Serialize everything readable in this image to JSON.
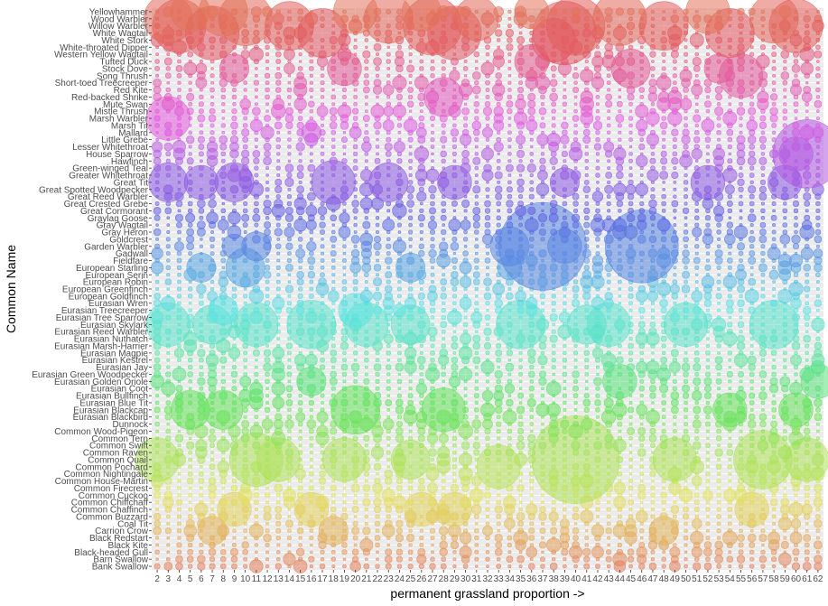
{
  "chart_data": {
    "type": "scatter",
    "subtype": "bubble",
    "xlabel": "permanent grassland proportion ->",
    "ylabel": "Common Name",
    "x_categories": [
      "2",
      "3",
      "4",
      "5",
      "6",
      "7",
      "8",
      "9",
      "10",
      "11",
      "12",
      "13",
      "14",
      "15",
      "16",
      "17",
      "18",
      "19",
      "20",
      "21",
      "22",
      "23",
      "24",
      "25",
      "26",
      "27",
      "28",
      "29",
      "30",
      "31",
      "32",
      "33",
      "34",
      "35",
      "36",
      "37",
      "38",
      "39",
      "40",
      "41",
      "42",
      "43",
      "44",
      "45",
      "46",
      "47",
      "48",
      "49",
      "50",
      "51",
      "52",
      "53",
      "54",
      "55",
      "56",
      "57",
      "58",
      "59",
      "60",
      "61",
      "62"
    ],
    "y_categories": [
      "Bank Swallow",
      "Barn Swallow",
      "Black-headed Gull",
      "Black Kite",
      "Black Redstart",
      "Carrion Crow",
      "Coal Tit",
      "Common Buzzard",
      "Common Chaffinch",
      "Common Chiffchaff",
      "Common Cuckoo",
      "Common Firecrest",
      "Common House-Martin",
      "Common Nightingale",
      "Common Pochard",
      "Common Quail",
      "Common Raven",
      "Common Swift",
      "Common Tern",
      "Common Wood-Pigeon",
      "Dunnock",
      "Eurasian Blackbird",
      "Eurasian Blackcap",
      "Eurasian Blue Tit",
      "Eurasian Bullfinch",
      "Eurasian Coot",
      "Eurasian Golden Oriole",
      "Eurasian Green Woodpecker",
      "Eurasian Jay",
      "Eurasian Kestrel",
      "Eurasian Magpie",
      "Eurasian Marsh-Harrier",
      "Eurasian Nuthatch",
      "Eurasian Reed Warbler",
      "Eurasian Skylark",
      "Eurasian Tree Sparrow",
      "Eurasian Treecreeper",
      "Eurasian Wren",
      "European Goldfinch",
      "European Greenfinch",
      "European Robin",
      "European Serin",
      "European Starling",
      "Fieldfare",
      "Gadwall",
      "Garden Warbler",
      "Goldcrest",
      "Gray Heron",
      "Gray Wagtail",
      "Graylag Goose",
      "Great Cormorant",
      "Great Crested Grebe",
      "Great Reed Warbler",
      "Great Spotted Woodpecker",
      "Great Tit",
      "Greater Whitethroat",
      "Green-winged Teal",
      "Hawfinch",
      "House Sparrow",
      "Lesser Whitethroat",
      "Little Grebe",
      "Mallard",
      "Marsh Tit",
      "Marsh Warbler",
      "Mistle Thrush",
      "Mute Swan",
      "Red-backed Shrike",
      "Red Kite",
      "Short-toed Treecreeper",
      "Song Thrush",
      "Stock Dove",
      "Tufted Duck",
      "Western Yellow Wagtail",
      "White-throated Dipper",
      "White Stork",
      "White Wagtail",
      "Willow Warbler",
      "Wood Warbler",
      "Yellowhammer"
    ],
    "highlights": [
      {
        "species": "Yellowhammer",
        "x": "5",
        "size": 8
      },
      {
        "species": "Yellowhammer",
        "x": "8",
        "size": 10
      },
      {
        "species": "Yellowhammer",
        "x": "20",
        "size": 9
      },
      {
        "species": "Yellowhammer",
        "x": "26",
        "size": 8
      },
      {
        "species": "Yellowhammer",
        "x": "36",
        "size": 7
      },
      {
        "species": "Yellowhammer",
        "x": "52",
        "size": 9
      },
      {
        "species": "Wood Warbler",
        "x": "3",
        "size": 10
      },
      {
        "species": "Wood Warbler",
        "x": "10",
        "size": 11
      },
      {
        "species": "Wood Warbler",
        "x": "23",
        "size": 10
      },
      {
        "species": "Wood Warbler",
        "x": "31",
        "size": 9
      },
      {
        "species": "Wood Warbler",
        "x": "44",
        "size": 11
      },
      {
        "species": "Wood Warbler",
        "x": "58",
        "size": 10
      },
      {
        "species": "Willow Warbler",
        "x": "4",
        "size": 11
      },
      {
        "species": "Willow Warbler",
        "x": "14",
        "size": 10
      },
      {
        "species": "Willow Warbler",
        "x": "27",
        "size": 12
      },
      {
        "species": "Willow Warbler",
        "x": "40",
        "size": 12
      },
      {
        "species": "Willow Warbler",
        "x": "48",
        "size": 10
      },
      {
        "species": "Willow Warbler",
        "x": "60",
        "size": 11
      },
      {
        "species": "White Wagtail",
        "x": "7",
        "size": 11
      },
      {
        "species": "White Wagtail",
        "x": "17",
        "size": 10
      },
      {
        "species": "White Wagtail",
        "x": "29",
        "size": 11
      },
      {
        "species": "White Wagtail",
        "x": "39",
        "size": 13
      },
      {
        "species": "White Wagtail",
        "x": "54",
        "size": 10
      },
      {
        "species": "White Stork",
        "x": "38",
        "size": 9
      },
      {
        "species": "Tufted Duck",
        "x": "36",
        "size": 7
      },
      {
        "species": "Stock Dove",
        "x": "9",
        "size": 6
      },
      {
        "species": "Stock Dove",
        "x": "19",
        "size": 7
      },
      {
        "species": "Stock Dove",
        "x": "45",
        "size": 8
      },
      {
        "species": "Stock Dove",
        "x": "53",
        "size": 6
      },
      {
        "species": "Song Thrush",
        "x": "55",
        "size": 9
      },
      {
        "species": "Red-backed Shrike",
        "x": "28",
        "size": 8
      },
      {
        "species": "Marsh Warbler",
        "x": "3",
        "size": 9
      },
      {
        "species": "Mallard",
        "x": "16",
        "size": 4
      },
      {
        "species": "House Sparrow",
        "x": "61",
        "size": 14
      },
      {
        "species": "House Sparrow",
        "x": "60",
        "size": 7
      },
      {
        "species": "Great Tit",
        "x": "3",
        "size": 8
      },
      {
        "species": "Great Tit",
        "x": "6",
        "size": 7
      },
      {
        "species": "Great Tit",
        "x": "9",
        "size": 8
      },
      {
        "species": "Great Tit",
        "x": "18",
        "size": 9
      },
      {
        "species": "Great Tit",
        "x": "23",
        "size": 8
      },
      {
        "species": "Great Tit",
        "x": "29",
        "size": 7
      },
      {
        "species": "Great Tit",
        "x": "39",
        "size": 6
      },
      {
        "species": "Great Tit",
        "x": "52",
        "size": 7
      },
      {
        "species": "Great Tit",
        "x": "59",
        "size": 7
      },
      {
        "species": "Garden Warbler",
        "x": "37",
        "size": 18
      },
      {
        "species": "Garden Warbler",
        "x": "46",
        "size": 15
      },
      {
        "species": "Garden Warbler",
        "x": "34",
        "size": 8
      },
      {
        "species": "Garden Warbler",
        "x": "39",
        "size": 7
      },
      {
        "species": "Garden Warbler",
        "x": "11",
        "size": 6
      },
      {
        "species": "Garden Warbler",
        "x": "9",
        "size": 5
      },
      {
        "species": "European Starling",
        "x": "6",
        "size": 6
      },
      {
        "species": "European Starling",
        "x": "10",
        "size": 8
      },
      {
        "species": "European Starling",
        "x": "25",
        "size": 6
      },
      {
        "species": "European Starling",
        "x": "34",
        "size": 5
      },
      {
        "species": "Eurasian Treecreeper",
        "x": "20",
        "size": 7
      },
      {
        "species": "Eurasian Treecreeper",
        "x": "8",
        "size": 6
      },
      {
        "species": "Eurasian Skylark",
        "x": "3",
        "size": 9
      },
      {
        "species": "Eurasian Skylark",
        "x": "7",
        "size": 8
      },
      {
        "species": "Eurasian Skylark",
        "x": "11",
        "size": 9
      },
      {
        "species": "Eurasian Skylark",
        "x": "16",
        "size": 10
      },
      {
        "species": "Eurasian Skylark",
        "x": "21",
        "size": 9
      },
      {
        "species": "Eurasian Skylark",
        "x": "25",
        "size": 8
      },
      {
        "species": "Eurasian Skylark",
        "x": "35",
        "size": 10
      },
      {
        "species": "Eurasian Skylark",
        "x": "41",
        "size": 8
      },
      {
        "species": "Eurasian Skylark",
        "x": "43",
        "size": 9
      },
      {
        "species": "Eurasian Skylark",
        "x": "50",
        "size": 9
      },
      {
        "species": "Eurasian Skylark",
        "x": "58",
        "size": 10
      },
      {
        "species": "Eurasian Golden Oriole",
        "x": "16",
        "size": 6
      },
      {
        "species": "Eurasian Golden Oriole",
        "x": "44",
        "size": 7
      },
      {
        "species": "Eurasian Golden Oriole",
        "x": "62",
        "size": 7
      },
      {
        "species": "Eurasian Blackcap",
        "x": "5",
        "size": 8
      },
      {
        "species": "Eurasian Blackcap",
        "x": "8",
        "size": 8
      },
      {
        "species": "Eurasian Blackcap",
        "x": "20",
        "size": 10
      },
      {
        "species": "Eurasian Blackcap",
        "x": "28",
        "size": 9
      },
      {
        "species": "Eurasian Blackcap",
        "x": "54",
        "size": 7
      },
      {
        "species": "Eurasian Blackcap",
        "x": "60",
        "size": 7
      },
      {
        "species": "Common Quail",
        "x": "2",
        "size": 9
      },
      {
        "species": "Common Quail",
        "x": "11",
        "size": 11
      },
      {
        "species": "Common Quail",
        "x": "13",
        "size": 9
      },
      {
        "species": "Common Quail",
        "x": "19",
        "size": 9
      },
      {
        "species": "Common Quail",
        "x": "25",
        "size": 8
      },
      {
        "species": "Common Quail",
        "x": "40",
        "size": 18
      },
      {
        "species": "Common Quail",
        "x": "49",
        "size": 9
      },
      {
        "species": "Common Quail",
        "x": "57",
        "size": 12
      },
      {
        "species": "Common Quail",
        "x": "61",
        "size": 9
      },
      {
        "species": "Common Pochard",
        "x": "33",
        "size": 9
      },
      {
        "species": "Common Chaffinch",
        "x": "9",
        "size": 7
      },
      {
        "species": "Common Chaffinch",
        "x": "16",
        "size": 7
      },
      {
        "species": "Common Chaffinch",
        "x": "26",
        "size": 7
      },
      {
        "species": "Common Chaffinch",
        "x": "29",
        "size": 7
      },
      {
        "species": "Common Chaffinch",
        "x": "56",
        "size": 7
      },
      {
        "species": "Carrion Crow",
        "x": "7",
        "size": 6
      },
      {
        "species": "Carrion Crow",
        "x": "18",
        "size": 6
      },
      {
        "species": "Carrion Crow",
        "x": "48",
        "size": 6
      }
    ]
  }
}
